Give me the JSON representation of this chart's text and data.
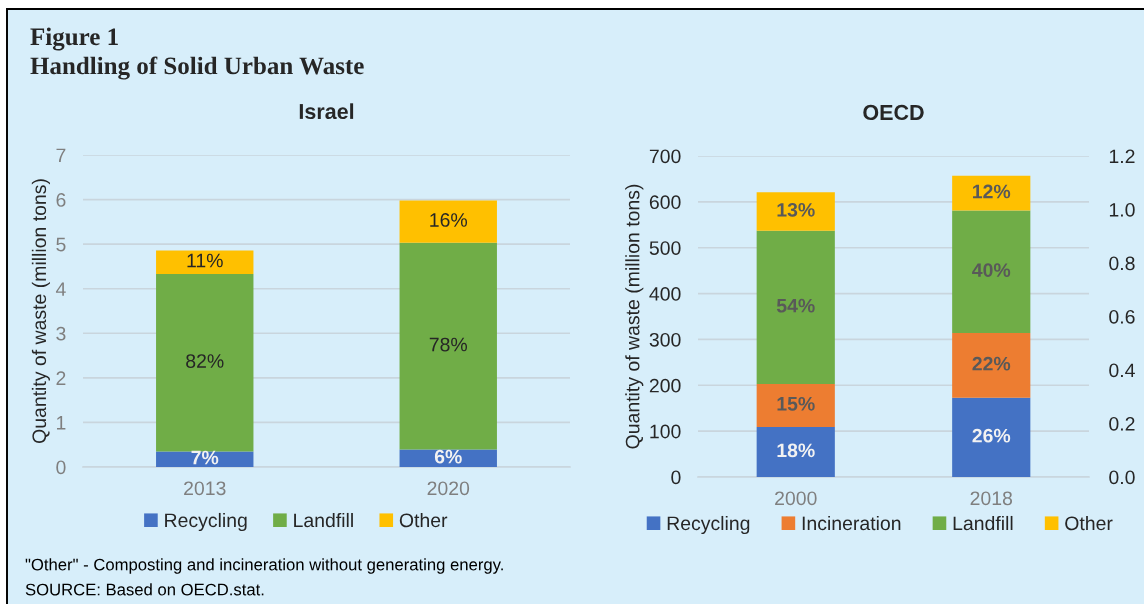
{
  "chart_data": [
    {
      "type": "other",
      "title": "Figure 1",
      "subtitle": "Handling of Solid Urban Waste",
      "annotations": [
        "\"Other\" - Composting and incineration without generating energy.",
        "SOURCE: Based on OECD.stat."
      ]
    },
    {
      "type": "bar",
      "title": "Israel",
      "ylabel": "Quantity of waste (million tons)",
      "categories": [
        "2013",
        "2020"
      ],
      "stacked": true,
      "series": [
        {
          "name": "Recycling",
          "color": "#4472c4",
          "values": [
            0.35,
            0.39
          ]
        },
        {
          "name": "Landfill",
          "color": "#70ad47",
          "values": [
            3.98,
            4.64
          ]
        },
        {
          "name": "Other",
          "color": "#ffc000",
          "values": [
            0.53,
            0.95
          ]
        }
      ],
      "annotations": [
        "7%",
        "82%",
        "11%",
        "6%",
        "78%",
        "16%"
      ],
      "ylim": [
        0,
        7
      ],
      "yticks": [
        0,
        1,
        2,
        3,
        4,
        5,
        6,
        7
      ],
      "grid": "y",
      "legend": "bottom"
    },
    {
      "type": "bar",
      "title": "OECD",
      "ylabel": "Quantity of waste (million tons)",
      "categories": [
        "2000",
        "2018"
      ],
      "stacked": true,
      "series": [
        {
          "name": "Recycling",
          "color": "#4472c4",
          "values": [
            109,
            173
          ]
        },
        {
          "name": "Incineration",
          "color": "#ed7d31",
          "values": [
            94,
            141
          ]
        },
        {
          "name": "Landfill",
          "color": "#70ad47",
          "values": [
            334,
            267
          ]
        },
        {
          "name": "Other",
          "color": "#ffc000",
          "values": [
            84,
            76
          ]
        }
      ],
      "annotations": [
        "18%",
        "15%",
        "54%",
        "13%",
        "26%",
        "22%",
        "40%",
        "12%"
      ],
      "ylim": [
        0,
        700
      ],
      "yticks": [
        0,
        100,
        200,
        300,
        400,
        500,
        600,
        700
      ],
      "y2lim": [
        0,
        1.2
      ],
      "y2ticks": [
        {
          "value": 0,
          "label": "0.0"
        },
        0.2,
        0.4,
        0.6,
        0.8,
        {
          "value": 1,
          "label": "1.0"
        },
        1.2
      ],
      "grid": "y",
      "legend": "bottom"
    }
  ]
}
